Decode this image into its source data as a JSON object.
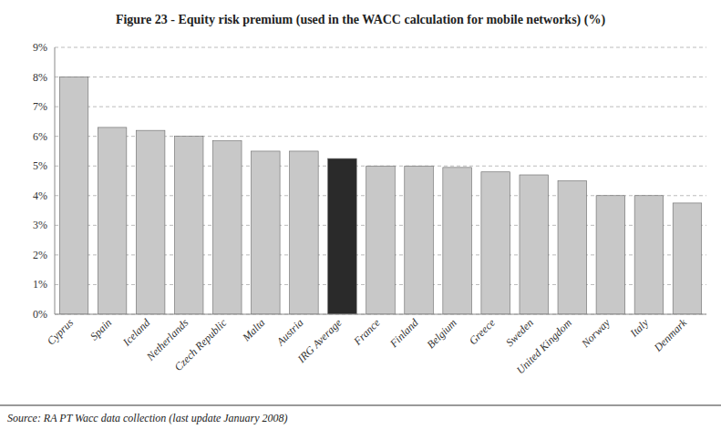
{
  "chart_data": {
    "type": "bar",
    "title": "Figure 23 - Equity risk premium (used in the WACC calculation for mobile networks) (%)",
    "categories": [
      "Cyprus",
      "Spain",
      "Iceland",
      "Netherlands",
      "Czech Republic",
      "Malta",
      "Austria",
      "IRG Average",
      "France",
      "Finland",
      "Belgium",
      "Greece",
      "Sweden",
      "United Kingdom",
      "Norway",
      "Italy",
      "Denmark"
    ],
    "values": [
      8.0,
      6.3,
      6.2,
      6.0,
      5.85,
      5.5,
      5.5,
      5.25,
      5.0,
      5.0,
      4.95,
      4.8,
      4.7,
      4.5,
      4.0,
      4.0,
      3.75
    ],
    "colors": [
      "#c8c8c8",
      "#c8c8c8",
      "#c8c8c8",
      "#c8c8c8",
      "#c8c8c8",
      "#c8c8c8",
      "#c8c8c8",
      "#2a2a2a",
      "#c8c8c8",
      "#c8c8c8",
      "#c8c8c8",
      "#c8c8c8",
      "#c8c8c8",
      "#c8c8c8",
      "#c8c8c8",
      "#c8c8c8",
      "#c8c8c8"
    ],
    "ylim": [
      0,
      9
    ],
    "yticks": [
      {
        "value": 0,
        "label": "0%"
      },
      {
        "value": 1,
        "label": "1%"
      },
      {
        "value": 2,
        "label": "2%"
      },
      {
        "value": 3,
        "label": "3%"
      },
      {
        "value": 4,
        "label": "4%"
      },
      {
        "value": 5,
        "label": "5%"
      },
      {
        "value": 6,
        "label": "6%"
      },
      {
        "value": 7,
        "label": "7%"
      },
      {
        "value": 8,
        "label": "8%"
      },
      {
        "value": 9,
        "label": "9%"
      }
    ],
    "grid": true,
    "annotations": [
      "Source: RA PT Wacc data collection (last update January 2008)"
    ]
  }
}
